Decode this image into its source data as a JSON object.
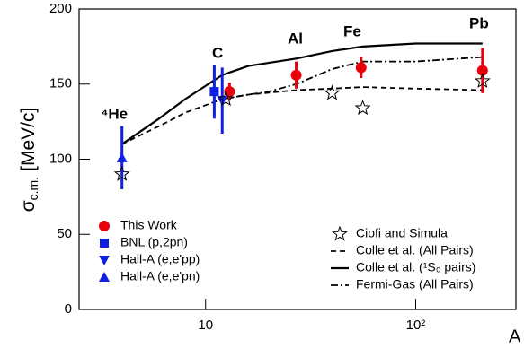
{
  "chart_data": {
    "type": "scatter",
    "y_label": "σ",
    "y_label_sub": "c.m.",
    "y_label_unit": "[MeV/c]",
    "x_label": "A",
    "x_scale": "log",
    "xlim": [
      2.5,
      300
    ],
    "xticks": [
      10,
      {
        "value": 100,
        "label": "10²"
      }
    ],
    "ylim": [
      0,
      200
    ],
    "yticks": [
      0,
      50,
      100,
      150,
      200
    ],
    "annotations": [
      "⁴He",
      "C",
      "Al",
      "Fe",
      "Pb"
    ],
    "series": [
      {
        "name": "This Work",
        "color": "#e8000b",
        "marker": "circle",
        "legend": "lower left",
        "x": [
          13,
          27,
          55,
          208
        ],
        "values": [
          145,
          156,
          161,
          159
        ],
        "errors": [
          6,
          9,
          7,
          15
        ]
      },
      {
        "name": "BNL (p,2pn)",
        "color": "#1020e0",
        "marker": "square",
        "legend": "lower left",
        "x": [
          11
        ],
        "values": [
          145
        ],
        "errors": [
          18
        ]
      },
      {
        "name": "Hall-A (e,e'pp)",
        "color": "#1020e0",
        "marker": "triangle-down",
        "legend": "lower left",
        "x": [
          12
        ],
        "values": [
          139
        ],
        "errors": [
          22
        ]
      },
      {
        "name": "Hall-A (e,e'pn)",
        "color": "#1020e0",
        "marker": "triangle-up",
        "legend": "lower left",
        "x": [
          4
        ],
        "values": [
          101
        ],
        "errors": [
          21
        ]
      },
      {
        "name": "Ciofi and Simula",
        "color": "#000000",
        "marker": "star",
        "legend": "lower right",
        "x": [
          4,
          12.5,
          40,
          56,
          208
        ],
        "values": [
          90,
          140,
          144,
          134,
          152
        ]
      },
      {
        "name": "Colle et al. (All Pairs)",
        "color": "#000000",
        "line": "dashed",
        "legend": "lower right",
        "x": [
          4,
          6,
          8,
          12,
          16,
          27,
          40,
          56,
          100,
          208
        ],
        "values": [
          110,
          122,
          131,
          140,
          143,
          146,
          147,
          148,
          147,
          146
        ]
      },
      {
        "name": "Colle et al. (¹S₀ pairs)",
        "color": "#000000",
        "line": "solid",
        "legend": "lower right",
        "x": [
          4,
          6,
          8,
          12,
          16,
          27,
          40,
          56,
          100,
          208
        ],
        "values": [
          110,
          127,
          140,
          156,
          162,
          167,
          172,
          175,
          177,
          177
        ]
      },
      {
        "name": "Fermi-Gas (All Pairs)",
        "color": "#000000",
        "line": "dashdot",
        "legend": "lower right",
        "x": [
          12,
          16,
          20,
          27,
          40,
          56,
          100,
          208
        ],
        "values": [
          140,
          143,
          145,
          150,
          160,
          165,
          165,
          168
        ]
      }
    ]
  }
}
